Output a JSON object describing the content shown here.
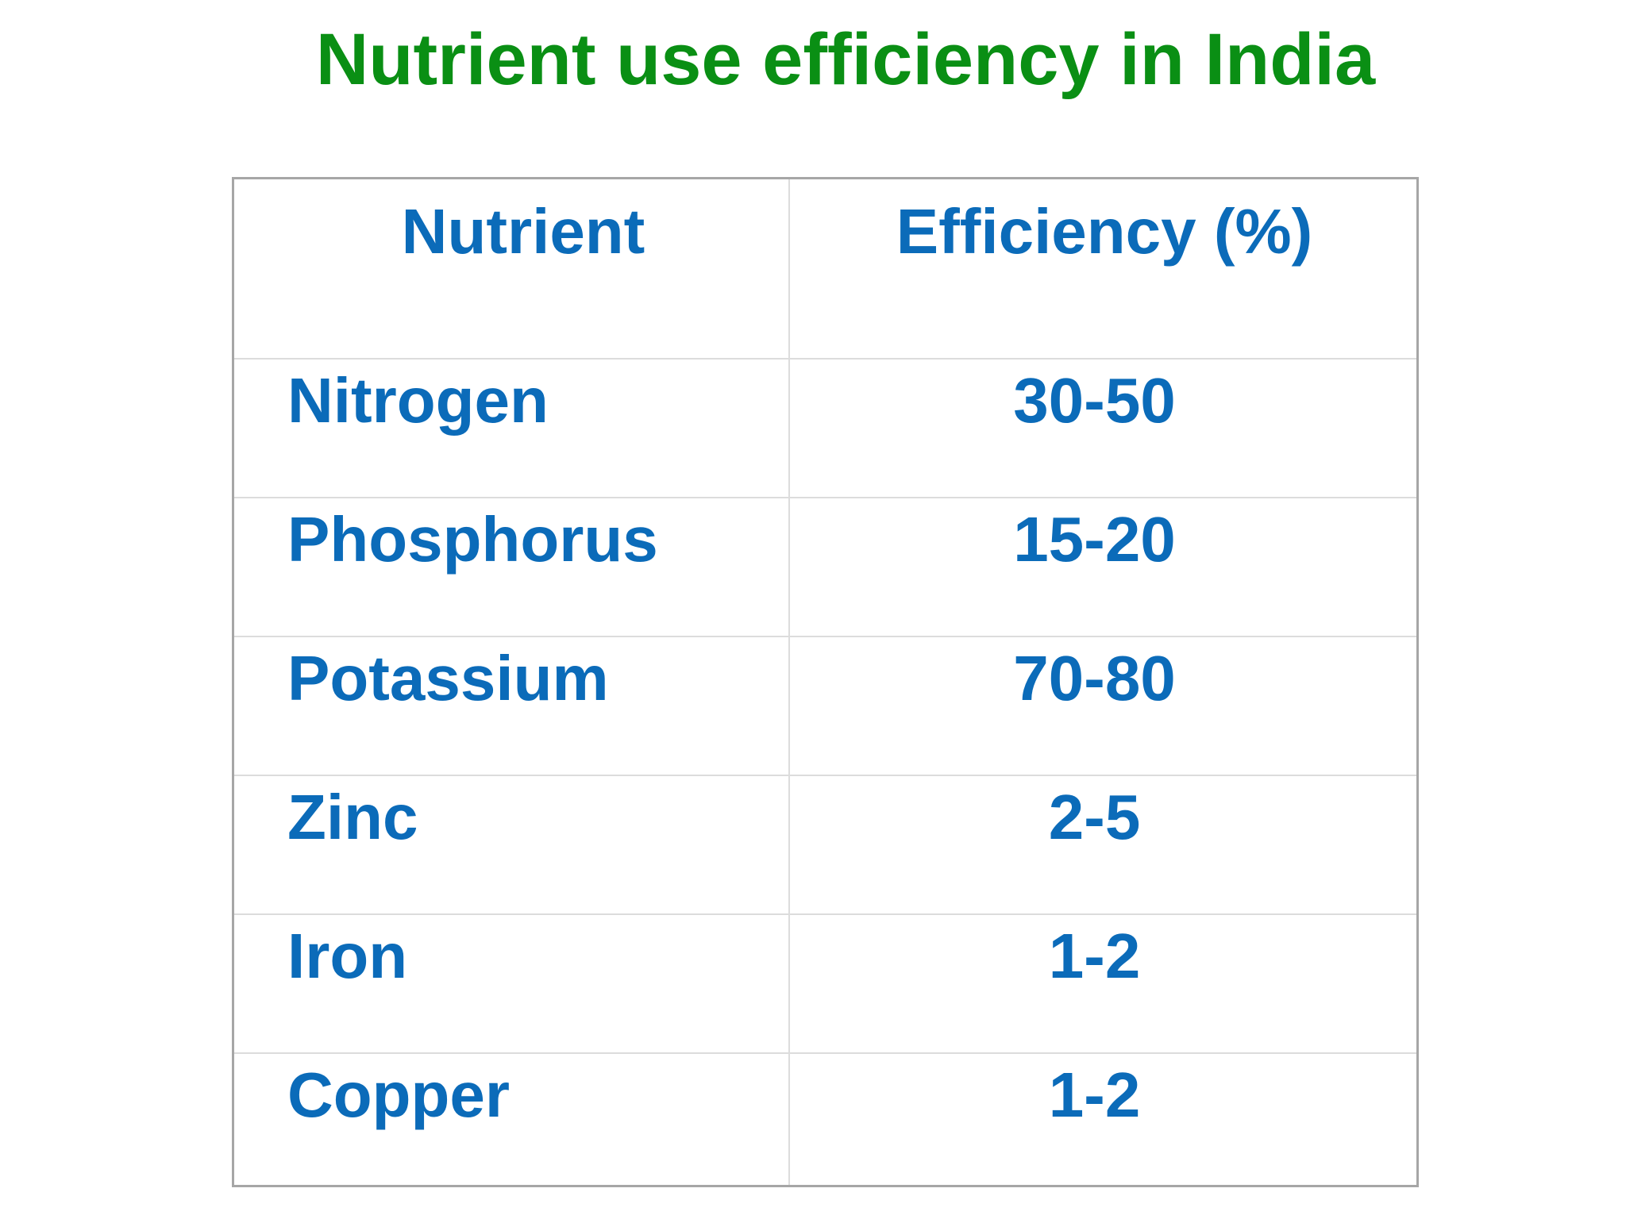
{
  "title": "Nutrient use efficiency in India",
  "colors": {
    "title": "#0a8f14",
    "table_text": "#0b6bb9",
    "table_border": "#a6a6a6",
    "grid_line": "#dcdcdc"
  },
  "table": {
    "headers": [
      "Nutrient",
      "Efficiency (%)"
    ],
    "rows": [
      [
        "Nitrogen",
        "30-50"
      ],
      [
        "Phosphorus",
        "15-20"
      ],
      [
        "Potassium",
        "70-80"
      ],
      [
        "Zinc",
        "2-5"
      ],
      [
        "Iron",
        "1-2"
      ],
      [
        "Copper",
        "1-2"
      ]
    ]
  }
}
